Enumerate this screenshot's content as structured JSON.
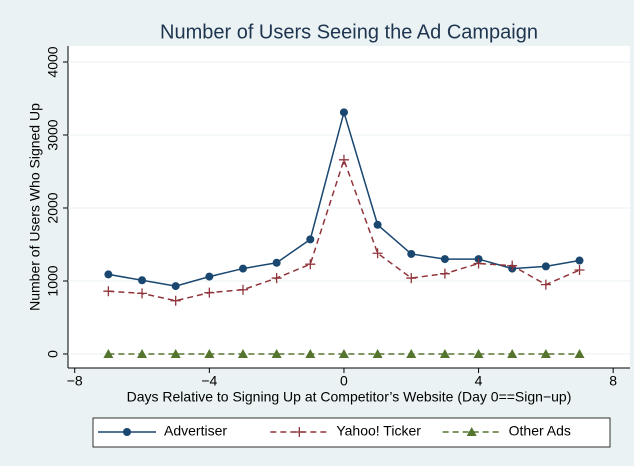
{
  "chart_data": {
    "type": "line",
    "title": "Number of Users Seeing the Ad Campaign",
    "x_label": "Days Relative to Signing Up at Competitor’s Website (Day 0==Sign−up)",
    "y_label": "Number of Users Who Signed Up",
    "x": [
      -7,
      -6,
      -5,
      -4,
      -3,
      -2,
      -1,
      0,
      1,
      2,
      3,
      4,
      5,
      6,
      7
    ],
    "series": [
      {
        "name": "Advertiser",
        "color": "#1a476f",
        "marker": "circle",
        "dash": false,
        "values": [
          1090,
          1010,
          930,
          1060,
          1170,
          1250,
          1570,
          3310,
          1770,
          1370,
          1300,
          1300,
          1170,
          1200,
          1280
        ]
      },
      {
        "name": "Yahoo! Ticker",
        "color": "#90353b",
        "marker": "plus",
        "dash": true,
        "values": [
          860,
          830,
          730,
          840,
          880,
          1040,
          1230,
          2660,
          1380,
          1040,
          1100,
          1240,
          1210,
          950,
          1150
        ]
      },
      {
        "name": "Other Ads",
        "color": "#55752f",
        "marker": "triangle",
        "dash": true,
        "values": [
          0,
          0,
          0,
          0,
          0,
          0,
          0,
          0,
          0,
          0,
          0,
          0,
          0,
          0,
          0
        ]
      }
    ],
    "xlim": [
      -8.2,
      8.5
    ],
    "xticks": [
      {
        "value": -8,
        "label": "−8"
      },
      {
        "value": -4,
        "label": "−4"
      },
      0,
      4,
      8
    ],
    "ylim": [
      -192,
      4219
    ],
    "yticks": [
      0,
      1000,
      2000,
      3000,
      4000
    ],
    "grid": true,
    "legend": "bottom"
  }
}
